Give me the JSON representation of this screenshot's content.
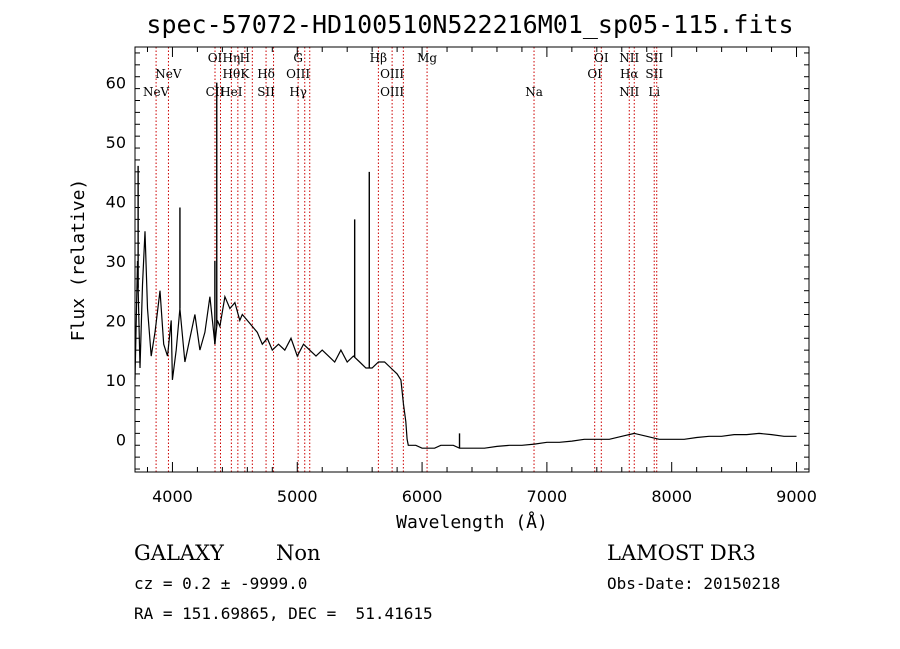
{
  "chart_data": {
    "type": "line",
    "title": "spec-57072-HD100510N522216M01_sp05-115.fits",
    "xlabel": "Wavelength (Å)",
    "ylabel": "Flux (relative)",
    "xlim": [
      3700,
      9100
    ],
    "ylim": [
      -5.5,
      66
    ],
    "x_ticks": [
      4000,
      5000,
      6000,
      7000,
      8000,
      9000
    ],
    "y_ticks": [
      0,
      10,
      20,
      30,
      40,
      50,
      60
    ],
    "line_color": "#000000",
    "marker_line_color": "#cc0000",
    "spectrum": {
      "x": [
        3700,
        3720,
        3740,
        3760,
        3780,
        3800,
        3830,
        3860,
        3900,
        3930,
        3960,
        3990,
        4000,
        4030,
        4060,
        4100,
        4140,
        4180,
        4220,
        4260,
        4300,
        4340,
        4360,
        4380,
        4420,
        4460,
        4500,
        4540,
        4560,
        4600,
        4640,
        4680,
        4720,
        4760,
        4800,
        4850,
        4900,
        4950,
        5000,
        5050,
        5100,
        5150,
        5200,
        5250,
        5300,
        5350,
        5400,
        5450,
        5500,
        5550,
        5600,
        5650,
        5700,
        5750,
        5800,
        5830,
        5850,
        5870,
        5880,
        5890,
        5900,
        5920,
        5950,
        6000,
        6050,
        6100,
        6150,
        6200,
        6250,
        6300,
        6400,
        6500,
        6600,
        6700,
        6800,
        6900,
        7000,
        7100,
        7200,
        7300,
        7400,
        7500,
        7600,
        7700,
        7800,
        7900,
        8000,
        8100,
        8200,
        8300,
        8400,
        8500,
        8600,
        8700,
        8800,
        8900,
        9000
      ],
      "y": [
        10,
        30,
        12,
        26,
        35,
        22,
        14,
        18,
        25,
        16,
        14,
        20,
        10,
        15,
        22,
        13,
        17,
        21,
        15,
        18,
        24,
        16,
        20,
        19,
        24,
        22,
        23,
        20,
        21,
        20,
        19,
        18,
        16,
        17,
        15,
        16,
        15,
        17,
        14,
        16,
        15,
        14,
        15,
        14,
        13,
        15,
        13,
        14,
        13,
        12,
        12,
        13,
        13,
        12,
        11,
        10,
        6,
        3,
        0,
        -1,
        -1,
        -1,
        -1,
        -1.5,
        -1.5,
        -1.5,
        -1,
        -1,
        -1,
        -1.5,
        -1.5,
        -1.5,
        -1.2,
        -1,
        -1,
        -0.8,
        -0.5,
        -0.5,
        -0.3,
        0,
        0,
        0,
        0.5,
        1,
        0.5,
        0,
        0,
        0,
        0.3,
        0.5,
        0.5,
        0.8,
        0.8,
        1,
        0.8,
        0.5,
        0.5
      ]
    },
    "emission_spikes": [
      {
        "x": 3725,
        "y": 46
      },
      {
        "x": 4060,
        "y": 39
      },
      {
        "x": 4340,
        "y": 30
      },
      {
        "x": 4355,
        "y": 60
      },
      {
        "x": 5460,
        "y": 37
      },
      {
        "x": 5577,
        "y": 45
      },
      {
        "x": 6300,
        "y": 1
      }
    ],
    "line_markers": [
      {
        "x": 3869,
        "top": "",
        "mid": "",
        "bot": "NeV"
      },
      {
        "x": 3968,
        "top": "",
        "mid": "NeV",
        "bot": ""
      },
      {
        "x": 4341,
        "top": "OI",
        "mid": "",
        "bot": "CII"
      },
      {
        "x": 4385,
        "top": "",
        "mid": "",
        "bot": ""
      },
      {
        "x": 4472,
        "top": "Hη",
        "mid": "Hθ",
        "bot": "HeI"
      },
      {
        "x": 4524,
        "top": "",
        "mid": "",
        "bot": ""
      },
      {
        "x": 4580,
        "top": "H",
        "mid": "K",
        "bot": ""
      },
      {
        "x": 4640,
        "top": "",
        "mid": "",
        "bot": ""
      },
      {
        "x": 4750,
        "top": "",
        "mid": "Hδ",
        "bot": "SII"
      },
      {
        "x": 4810,
        "top": "",
        "mid": "",
        "bot": ""
      },
      {
        "x": 5007,
        "top": "G",
        "mid": "OIII",
        "bot": "Hγ"
      },
      {
        "x": 5060,
        "top": "",
        "mid": "",
        "bot": ""
      },
      {
        "x": 5100,
        "top": "",
        "mid": "",
        "bot": ""
      },
      {
        "x": 5650,
        "top": "Hβ",
        "mid": "",
        "bot": ""
      },
      {
        "x": 5760,
        "top": "",
        "mid": "OIII",
        "bot": "OIII"
      },
      {
        "x": 5850,
        "top": "",
        "mid": "",
        "bot": ""
      },
      {
        "x": 6040,
        "top": "Mg",
        "mid": "",
        "bot": ""
      },
      {
        "x": 6897,
        "top": "",
        "mid": "",
        "bot": "Na"
      },
      {
        "x": 7383,
        "top": "",
        "mid": "OI",
        "bot": ""
      },
      {
        "x": 7436,
        "top": "OI",
        "mid": "",
        "bot": ""
      },
      {
        "x": 7660,
        "top": "NII",
        "mid": "Hα",
        "bot": "NII"
      },
      {
        "x": 7700,
        "top": "",
        "mid": "",
        "bot": ""
      },
      {
        "x": 7860,
        "top": "SII",
        "mid": "SII",
        "bot": "Li"
      },
      {
        "x": 7880,
        "top": "",
        "mid": "",
        "bot": ""
      }
    ],
    "grid": false,
    "legend": "none"
  },
  "footer": {
    "object_class": "GALAXY",
    "subclass": "Non",
    "survey": "LAMOST DR3",
    "cz": "cz = 0.2 ± -9999.0",
    "obs_date": "Obs-Date: 20150218",
    "coords": "RA = 151.69865, DEC =  51.41615"
  }
}
